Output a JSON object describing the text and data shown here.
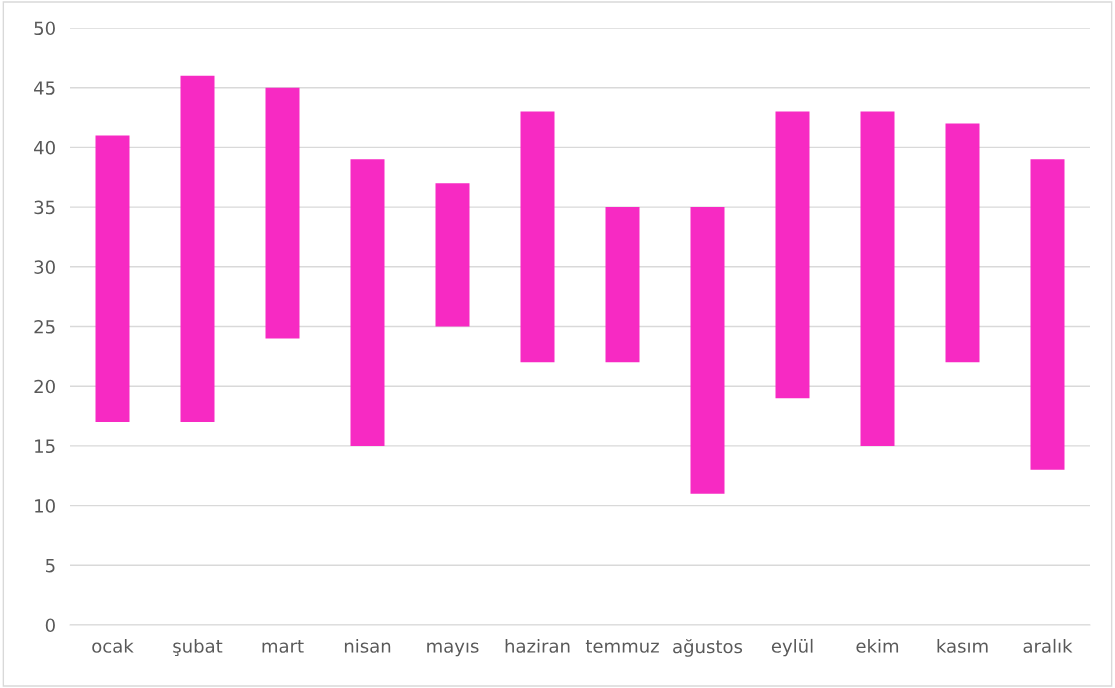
{
  "chart_data": {
    "type": "bar",
    "categories": [
      "ocak",
      "şubat",
      "mart",
      "nisan",
      "mayıs",
      "haziran",
      "temmuz",
      "ağustos",
      "eylül",
      "ekim",
      "kasım",
      "aralık"
    ],
    "base": [
      17,
      17,
      24,
      15,
      25,
      22,
      22,
      11,
      19,
      15,
      22,
      13
    ],
    "values": [
      24,
      29,
      21,
      24,
      12,
      21,
      13,
      24,
      24,
      28,
      20,
      26
    ],
    "color": "#f72ac3",
    "ylim": [
      0,
      50
    ],
    "yticks": [
      0,
      5,
      10,
      15,
      20,
      25,
      30,
      35,
      40,
      45,
      50
    ],
    "grid": "y"
  }
}
